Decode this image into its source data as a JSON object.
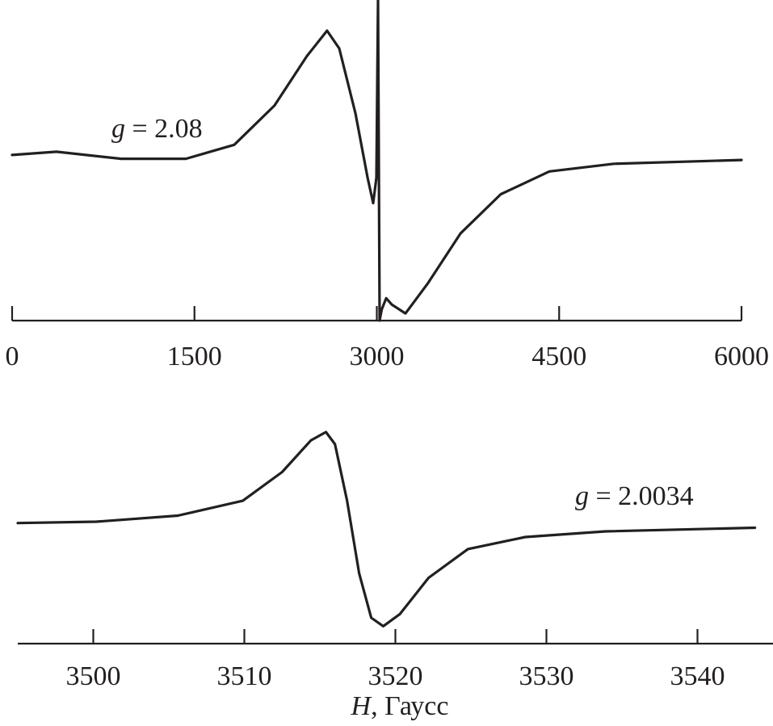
{
  "chart_data": [
    {
      "type": "line",
      "title": "",
      "xlabel": "",
      "ylabel": "",
      "xlim": [
        0,
        6000
      ],
      "ylim": [
        -1.29,
        1.24
      ],
      "grid": false,
      "xticks": [
        0,
        1500,
        3000,
        4500,
        6000
      ],
      "xtick_labels": [
        "0",
        "1500",
        "3000",
        "4500",
        "6000"
      ],
      "annotation": {
        "prefix": "g",
        "text": " = 2.08"
      },
      "series": [
        {
          "x": [
            0,
            365,
            897,
            1429,
            1827,
            2159,
            2425,
            2591,
            2691,
            2824,
            2924,
            2970,
            2997,
            3010,
            3023,
            3040,
            3077,
            3123,
            3236,
            3422,
            3688,
            4020,
            4419,
            4950,
            6000
          ],
          "y": [
            0.02,
            0.045,
            -0.01,
            -0.01,
            0.1,
            0.41,
            0.8,
            1.0,
            0.86,
            0.35,
            -0.16,
            -0.36,
            -0.16,
            1.24,
            -1.29,
            -1.2,
            -1.11,
            -1.16,
            -1.23,
            -0.99,
            -0.6,
            -0.29,
            -0.11,
            -0.05,
            -0.02
          ]
        }
      ]
    },
    {
      "type": "line",
      "title": "",
      "xlabel": "H, Гаусс",
      "xlabel_italic_part": "H",
      "xlabel_rest": ", Гаусс",
      "ylabel": "",
      "xlim": [
        3495,
        3545
      ],
      "ylim": [
        -1.25,
        1.25
      ],
      "grid": false,
      "xticks": [
        3500,
        3510,
        3520,
        3530,
        3540
      ],
      "xtick_labels": [
        "3500",
        "3510",
        "3520",
        "3530",
        "3540"
      ],
      "annotation": {
        "prefix": "g",
        "text": " = 2.0034"
      },
      "series": [
        {
          "x": [
            3495,
            3500.2,
            3505.6,
            3509.9,
            3512.5,
            3514.4,
            3515.4,
            3516.0,
            3516.8,
            3517.6,
            3518.4,
            3519.2,
            3520.3,
            3522.2,
            3524.8,
            3528.6,
            3533.9,
            3543.8
          ],
          "y": [
            0.02,
            0.035,
            0.1,
            0.26,
            0.57,
            0.91,
            1.0,
            0.87,
            0.26,
            -0.52,
            -1.0,
            -1.09,
            -0.96,
            -0.57,
            -0.26,
            -0.13,
            -0.07,
            -0.03
          ]
        }
      ]
    }
  ]
}
